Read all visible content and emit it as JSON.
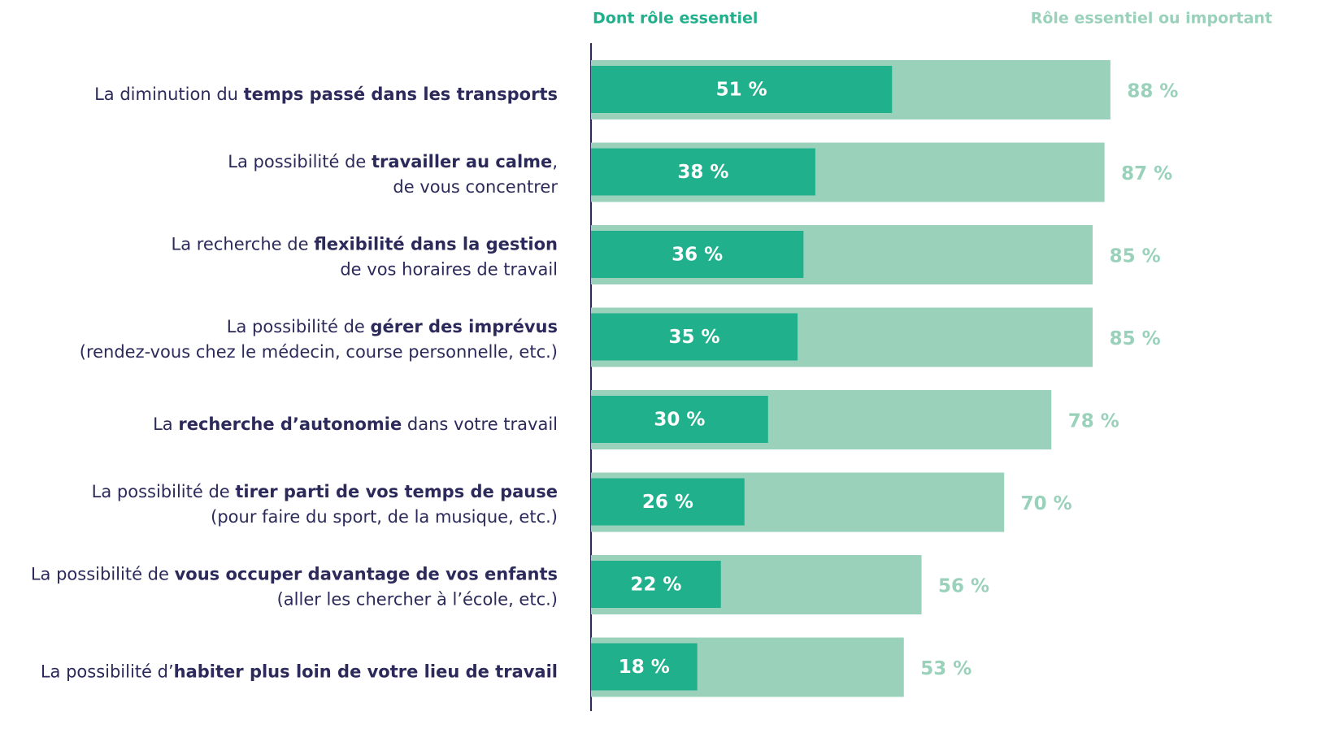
{
  "chart_data": {
    "type": "overlap-hbar",
    "categories": [
      {
        "lines": [
          [
            {
              "text": "La diminution du ",
              "bold": false
            },
            {
              "text": "temps passé dans les transports",
              "bold": true
            }
          ]
        ]
      },
      {
        "lines": [
          [
            {
              "text": "La possibilité de ",
              "bold": false
            },
            {
              "text": "travailler au calme",
              "bold": true
            },
            {
              "text": ",",
              "bold": false
            }
          ],
          [
            {
              "text": "de vous concentrer",
              "bold": false
            }
          ]
        ]
      },
      {
        "lines": [
          [
            {
              "text": "La recherche de ",
              "bold": false
            },
            {
              "text": "flexibilité dans la gestion",
              "bold": true
            }
          ],
          [
            {
              "text": "de vos horaires de travail",
              "bold": false
            }
          ]
        ]
      },
      {
        "lines": [
          [
            {
              "text": "La possibilité de ",
              "bold": false
            },
            {
              "text": "gérer des imprévus",
              "bold": true
            }
          ],
          [
            {
              "text": "(rendez-vous chez le médecin, course personnelle, etc.)",
              "bold": false
            }
          ]
        ]
      },
      {
        "lines": [
          [
            {
              "text": "La ",
              "bold": false
            },
            {
              "text": "recherche d’autonomie",
              "bold": true
            },
            {
              "text": " dans votre travail",
              "bold": false
            }
          ]
        ]
      },
      {
        "lines": [
          [
            {
              "text": "La possibilité de ",
              "bold": false
            },
            {
              "text": "tirer parti de vos temps de pause",
              "bold": true
            }
          ],
          [
            {
              "text": "(pour faire du sport, de la musique, etc.)",
              "bold": false
            }
          ]
        ]
      },
      {
        "lines": [
          [
            {
              "text": "La possibilité de ",
              "bold": false
            },
            {
              "text": "vous occuper davantage de vos enfants",
              "bold": true
            }
          ],
          [
            {
              "text": "(aller les chercher à l’école, etc.)",
              "bold": false
            }
          ]
        ]
      },
      {
        "lines": [
          [
            {
              "text": "La possibilité d’",
              "bold": false
            },
            {
              "text": "habiter plus loin de votre lieu de travail",
              "bold": true
            }
          ]
        ]
      }
    ],
    "series": [
      {
        "name": "Rôle essentiel ou important",
        "color": "#9ad1bb",
        "values": [
          88,
          87,
          85,
          85,
          78,
          70,
          56,
          53
        ],
        "value_labels": [
          "88 %",
          "87 %",
          "85 %",
          "85 %",
          "78 %",
          "70 %",
          "56 %",
          "53 %"
        ]
      },
      {
        "name": "Dont rôle essentiel",
        "color": "#20b08c",
        "values": [
          51,
          38,
          36,
          35,
          30,
          26,
          22,
          18
        ],
        "value_labels": [
          "51 %",
          "38 %",
          "36 %",
          "35 %",
          "30 %",
          "26 %",
          "22 %",
          "18 %"
        ]
      }
    ],
    "xlim": [
      0,
      100
    ]
  }
}
